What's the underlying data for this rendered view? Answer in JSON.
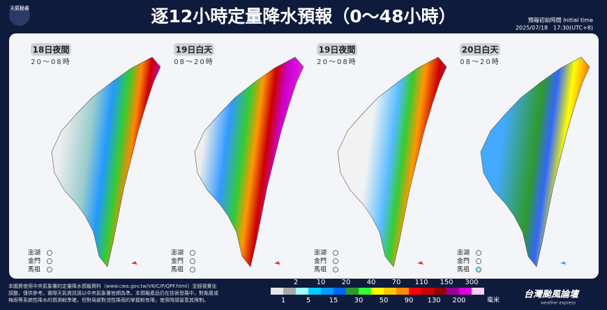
{
  "header": {
    "logo_text": "天氣秘書",
    "title": "逐12小時定量降水預報（0～48小時）",
    "init_label": "預報初始時間 Initial time",
    "init_time": "2025/07/18　17:30(UTC+8)"
  },
  "panels": [
    {
      "title": "18日夜間",
      "hours": "20～08時",
      "islands": [
        "澎湖",
        "金門",
        "馬祖"
      ]
    },
    {
      "title": "19日白天",
      "hours": "08～20時",
      "islands": [
        "澎湖",
        "金門",
        "馬祖"
      ]
    },
    {
      "title": "19日夜間",
      "hours": "20～08時",
      "islands": [
        "澎湖",
        "金門",
        "馬祖"
      ]
    },
    {
      "title": "20日白天",
      "hours": "08～20時",
      "islands": [
        "澎湖",
        "金門",
        "馬祖"
      ]
    }
  ],
  "footer": {
    "note": [
      "本圖資使用中央氣象署的定量降水預報資料（www.cwa.gov.tw/V8/C/P/QPF.html）並經視覺化",
      "調整，僅供參考。實際天氣資訊請以中央氣象署官網為準。本預報產品仍在技術發展中，對颱風或",
      "梅雨等系統性降水的預測較準確，但對局部對流性降雨的掌握較有限，使用時請留意其限制。"
    ],
    "scale": {
      "thresholds": [
        1,
        2,
        5,
        10,
        15,
        20,
        30,
        40,
        50,
        70,
        90,
        110,
        130,
        150,
        200,
        300
      ],
      "colors": [
        "#e6e6e6",
        "#a8a8a8",
        "#9ffffa",
        "#00cdff",
        "#009bff",
        "#0064ff",
        "#2e9a2e",
        "#33ff33",
        "#ffff00",
        "#ffc800",
        "#ff8c00",
        "#ff0000",
        "#cc0000",
        "#990000",
        "#990099",
        "#dd00dd",
        "#ffccff"
      ],
      "unit": "毫米"
    },
    "brand": "台灣颱風論壇",
    "brand_sub": "weather express"
  }
}
